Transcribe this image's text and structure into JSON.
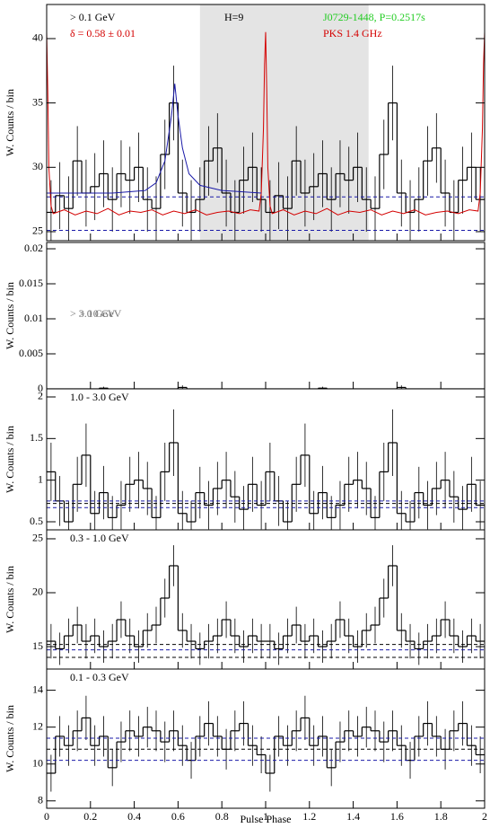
{
  "chart_data": [
    {
      "type": "histogram",
      "ylabel": "W. Counts / bin",
      "xlim": [
        0,
        2
      ],
      "ylim": [
        24.3,
        42.65
      ],
      "yticks": [
        25,
        30,
        35,
        40
      ],
      "bins": [
        0,
        0.04,
        0.08,
        0.12,
        0.16,
        0.2,
        0.24,
        0.28,
        0.32,
        0.36,
        0.4,
        0.44,
        0.48,
        0.52,
        0.56,
        0.6,
        0.64,
        0.68,
        0.72,
        0.76,
        0.8,
        0.84,
        0.88,
        0.92,
        0.96,
        1
      ],
      "values": [
        26.5,
        27.8,
        26.8,
        30.5,
        28.0,
        28.5,
        29.5,
        27.5,
        29.5,
        29.0,
        30.0,
        27.5,
        26.8,
        31.0,
        35.0,
        28.0,
        26.5,
        27.5,
        30.5,
        31.5,
        28.0,
        26.5,
        29.0,
        30.0,
        27.5
      ],
      "errors": [
        2.5,
        2.6,
        2.5,
        2.7,
        2.6,
        2.6,
        2.6,
        2.5,
        2.6,
        2.6,
        2.7,
        2.5,
        2.5,
        2.7,
        2.9,
        2.6,
        2.5,
        2.5,
        2.7,
        2.7,
        2.6,
        2.5,
        2.6,
        2.7,
        2.5
      ],
      "color": "#000000",
      "shade": [
        0.7,
        1.47
      ],
      "shade_color": "#e4e4e4",
      "hlines": [
        {
          "value": 27.7,
          "color": "#1a1aa8"
        },
        {
          "value": 25.1,
          "color": "#1a1aa8"
        }
      ],
      "series": [
        {
          "name": "PKS 1.4 GHz",
          "color": "#d40000",
          "x": [
            0,
            0.005,
            0.01,
            0.02,
            0.03,
            0.08,
            0.13,
            0.18,
            0.23,
            0.28,
            0.33,
            0.38,
            0.43,
            0.48,
            0.53,
            0.58,
            0.63,
            0.68,
            0.73,
            0.78,
            0.83,
            0.88,
            0.93,
            0.97,
            0.98,
            0.99,
            0.995,
            1
          ],
          "values": [
            40.5,
            36,
            30,
            27,
            26.4,
            26.7,
            26.3,
            26.6,
            26.4,
            26.8,
            26.3,
            26.6,
            26.5,
            26.7,
            26.3,
            26.6,
            26.4,
            26.7,
            26.3,
            26.5,
            26.6,
            26.4,
            26.7,
            26.6,
            28,
            33,
            38,
            40.5
          ]
        },
        {
          "name": "fit",
          "color": "#1a1aa8",
          "x": [
            0,
            0.3,
            0.45,
            0.5,
            0.54,
            0.57,
            0.585,
            0.6,
            0.62,
            0.65,
            0.7,
            0.8,
            0.98
          ],
          "values": [
            28.0,
            28.0,
            28.2,
            28.8,
            30.5,
            34,
            36.5,
            34,
            31.5,
            29.5,
            28.6,
            28.2,
            28.0
          ]
        }
      ],
      "annotations": [
        {
          "text": "> 0.1 GeV",
          "color": "#000000"
        },
        {
          "text": "δ = 0.58 ± 0.01",
          "color": "#d40000"
        },
        {
          "text": "H=9",
          "color": "#000000"
        },
        {
          "text": "J0729-1448, P=0.2517s",
          "color": "#22cc22"
        },
        {
          "text": "PKS 1.4 GHz",
          "color": "#d40000"
        }
      ]
    },
    {
      "type": "histogram",
      "ylabel": "W. Counts / bin",
      "xlim": [
        0,
        2
      ],
      "ylim": [
        0,
        0.0209
      ],
      "yticks": [
        0,
        0.005,
        0.01,
        0.015,
        0.02
      ],
      "bins": [
        0,
        0.04,
        0.08,
        0.12,
        0.16,
        0.2,
        0.24,
        0.28,
        0.32,
        0.36,
        0.4,
        0.44,
        0.48,
        0.52,
        0.56,
        0.6,
        0.64,
        0.68,
        0.72,
        0.76,
        0.8,
        0.84,
        0.88,
        0.92,
        0.96,
        1
      ],
      "values": [
        0,
        0,
        0,
        0,
        0,
        0,
        0.0001,
        0,
        0,
        0,
        0,
        0,
        0,
        0,
        0,
        0.0002,
        0,
        0,
        0,
        0,
        0,
        0,
        0,
        0,
        0
      ],
      "errors": [
        0,
        0,
        0,
        0,
        0,
        0,
        0.0002,
        0,
        0,
        0,
        0,
        0,
        0,
        0,
        0,
        0.0003,
        0,
        0,
        0,
        0,
        0,
        0,
        0,
        0,
        0
      ],
      "color": "#000000",
      "hlines": [],
      "series": [],
      "annotations": [
        {
          "text": "> 3.0 GeV",
          "color": "#777777"
        },
        {
          "text": "> 10 GeV",
          "color": "#777777"
        }
      ]
    },
    {
      "type": "histogram",
      "ylabel": "W. Counts / bin",
      "xlim": [
        0,
        2
      ],
      "ylim": [
        0.403,
        2.097
      ],
      "yticks": [
        0.5,
        1,
        1.5,
        2
      ],
      "bins": [
        0,
        0.04,
        0.08,
        0.12,
        0.16,
        0.2,
        0.24,
        0.28,
        0.32,
        0.36,
        0.4,
        0.44,
        0.48,
        0.52,
        0.56,
        0.6,
        0.64,
        0.68,
        0.72,
        0.76,
        0.8,
        0.84,
        0.88,
        0.92,
        0.96,
        1
      ],
      "values": [
        1.1,
        0.75,
        0.5,
        0.95,
        1.3,
        0.6,
        0.85,
        0.55,
        0.7,
        0.95,
        1.0,
        0.9,
        0.55,
        1.1,
        1.45,
        0.6,
        0.5,
        0.85,
        0.7,
        0.9,
        1.0,
        0.8,
        0.65,
        0.95,
        0.7
      ],
      "errors": [
        0.35,
        0.3,
        0.25,
        0.33,
        0.38,
        0.27,
        0.32,
        0.26,
        0.29,
        0.33,
        0.34,
        0.32,
        0.26,
        0.35,
        0.4,
        0.27,
        0.25,
        0.31,
        0.29,
        0.32,
        0.34,
        0.31,
        0.28,
        0.33,
        0.29
      ],
      "color": "#000000",
      "hlines": [
        {
          "value": 0.75,
          "color": "#1a1aa8"
        },
        {
          "value": 0.72,
          "color": "#000000"
        },
        {
          "value": 0.67,
          "color": "#1a1aa8"
        }
      ],
      "series": [],
      "annotations": [
        {
          "text": "1.0 - 3.0 GeV",
          "color": "#000000"
        }
      ]
    },
    {
      "type": "histogram",
      "ylabel": "W. Counts / bin",
      "xlim": [
        0,
        2
      ],
      "ylim": [
        12.92,
        25.83
      ],
      "yticks": [
        15,
        20,
        25
      ],
      "bins": [
        0,
        0.04,
        0.08,
        0.12,
        0.16,
        0.2,
        0.24,
        0.28,
        0.32,
        0.36,
        0.4,
        0.44,
        0.48,
        0.52,
        0.56,
        0.6,
        0.64,
        0.68,
        0.72,
        0.76,
        0.8,
        0.84,
        0.88,
        0.92,
        0.96,
        1
      ],
      "values": [
        15.5,
        14.8,
        16.0,
        17.0,
        15.5,
        16.0,
        15.0,
        15.5,
        17.5,
        16.0,
        15.0,
        16.5,
        17.0,
        19.5,
        22.5,
        16.5,
        15.5,
        14.8,
        15.5,
        16.0,
        17.5,
        16.0,
        15.0,
        16.0,
        15.5
      ],
      "errors": [
        1.6,
        1.5,
        1.6,
        1.7,
        1.6,
        1.6,
        1.5,
        1.6,
        1.7,
        1.6,
        1.5,
        1.6,
        1.7,
        1.8,
        1.9,
        1.6,
        1.6,
        1.5,
        1.6,
        1.6,
        1.7,
        1.6,
        1.5,
        1.6,
        1.6
      ],
      "color": "#000000",
      "hlines": [
        {
          "value": 15.2,
          "color": "#000000"
        },
        {
          "value": 14.7,
          "color": "#1a1aa8"
        },
        {
          "value": 14.0,
          "color": "#000000"
        }
      ],
      "series": [],
      "annotations": [
        {
          "text": "0.3 - 1.0 GeV",
          "color": "#000000"
        }
      ]
    },
    {
      "type": "histogram",
      "ylabel": "W. Counts / bin",
      "xlabel": "Pulse Phase",
      "xlim": [
        0,
        2
      ],
      "ylim": [
        7.6,
        15.15
      ],
      "yticks": [
        8,
        10,
        12,
        14
      ],
      "xticks": [
        0,
        0.2,
        0.4,
        0.6,
        0.8,
        1,
        1.2,
        1.4,
        1.6,
        1.8,
        2
      ],
      "bins": [
        0,
        0.04,
        0.08,
        0.12,
        0.16,
        0.2,
        0.24,
        0.28,
        0.32,
        0.36,
        0.4,
        0.44,
        0.48,
        0.52,
        0.56,
        0.6,
        0.64,
        0.68,
        0.72,
        0.76,
        0.8,
        0.84,
        0.88,
        0.92,
        0.96,
        1
      ],
      "values": [
        9.5,
        11.5,
        11.0,
        11.8,
        12.5,
        11.0,
        11.5,
        9.8,
        11.2,
        11.8,
        11.5,
        12.0,
        11.8,
        11.2,
        11.8,
        11.0,
        10.2,
        11.5,
        12.2,
        11.5,
        10.8,
        11.8,
        12.2,
        11.0,
        10.5
      ],
      "errors": [
        1.0,
        1.1,
        1.1,
        1.1,
        1.2,
        1.1,
        1.1,
        1.0,
        1.1,
        1.1,
        1.1,
        1.1,
        1.1,
        1.1,
        1.1,
        1.1,
        1.0,
        1.1,
        1.2,
        1.1,
        1.1,
        1.1,
        1.2,
        1.1,
        1.0
      ],
      "color": "#000000",
      "hlines": [
        {
          "value": 11.4,
          "color": "#1a1aa8"
        },
        {
          "value": 10.8,
          "color": "#000000"
        },
        {
          "value": 10.2,
          "color": "#1a1aa8"
        }
      ],
      "series": [],
      "annotations": [
        {
          "text": "0.1 - 0.3 GeV",
          "color": "#000000"
        }
      ]
    }
  ]
}
